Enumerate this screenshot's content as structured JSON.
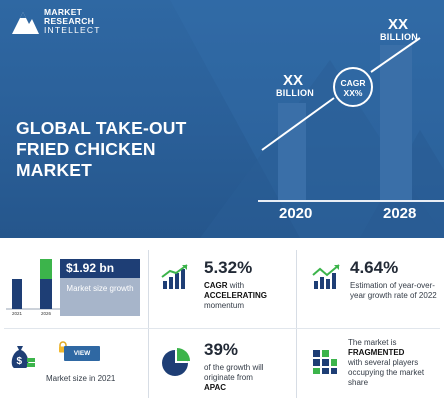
{
  "logo": {
    "line1": "MARKET",
    "line2": "RESEARCH",
    "line3": "INTELLECT"
  },
  "hero": {
    "title_lines": [
      "GLOBAL TAKE-OUT",
      "FRIED CHICKEN",
      "MARKET"
    ],
    "bar_2020": {
      "value": "XX",
      "unit": "BILLION",
      "year": "2020"
    },
    "bar_2028": {
      "value": "XX",
      "unit": "BILLION",
      "year": "2028"
    },
    "cagr": {
      "line1": "CAGR",
      "line2": "XX%"
    }
  },
  "market_size": {
    "value": "$1.92 bn",
    "sub_label": "Market size growth",
    "years": [
      "2021",
      "2026"
    ],
    "caption": "Market size in 2021",
    "view_label": "VIEW"
  },
  "cagr_stat": {
    "value": "5.32%",
    "label_bold1": "CAGR",
    "text1": "with",
    "label_bold2": "ACCELERATING",
    "text2": "momentum"
  },
  "yoy_stat": {
    "value": "4.64%",
    "text": "Estimation of year-over-year growth rate of 2022"
  },
  "apac_stat": {
    "value": "39%",
    "text": "of the growth will originate from",
    "region": "APAC"
  },
  "fragment_stat": {
    "text1": "The market is",
    "bold": "FRAGMENTED",
    "text2": "with several players occupying the market share"
  },
  "colors": {
    "hero_bg": "#2f68a3",
    "navy": "#1e3e75",
    "green": "#3cb44b",
    "muted_box": "#a7b5ca"
  }
}
